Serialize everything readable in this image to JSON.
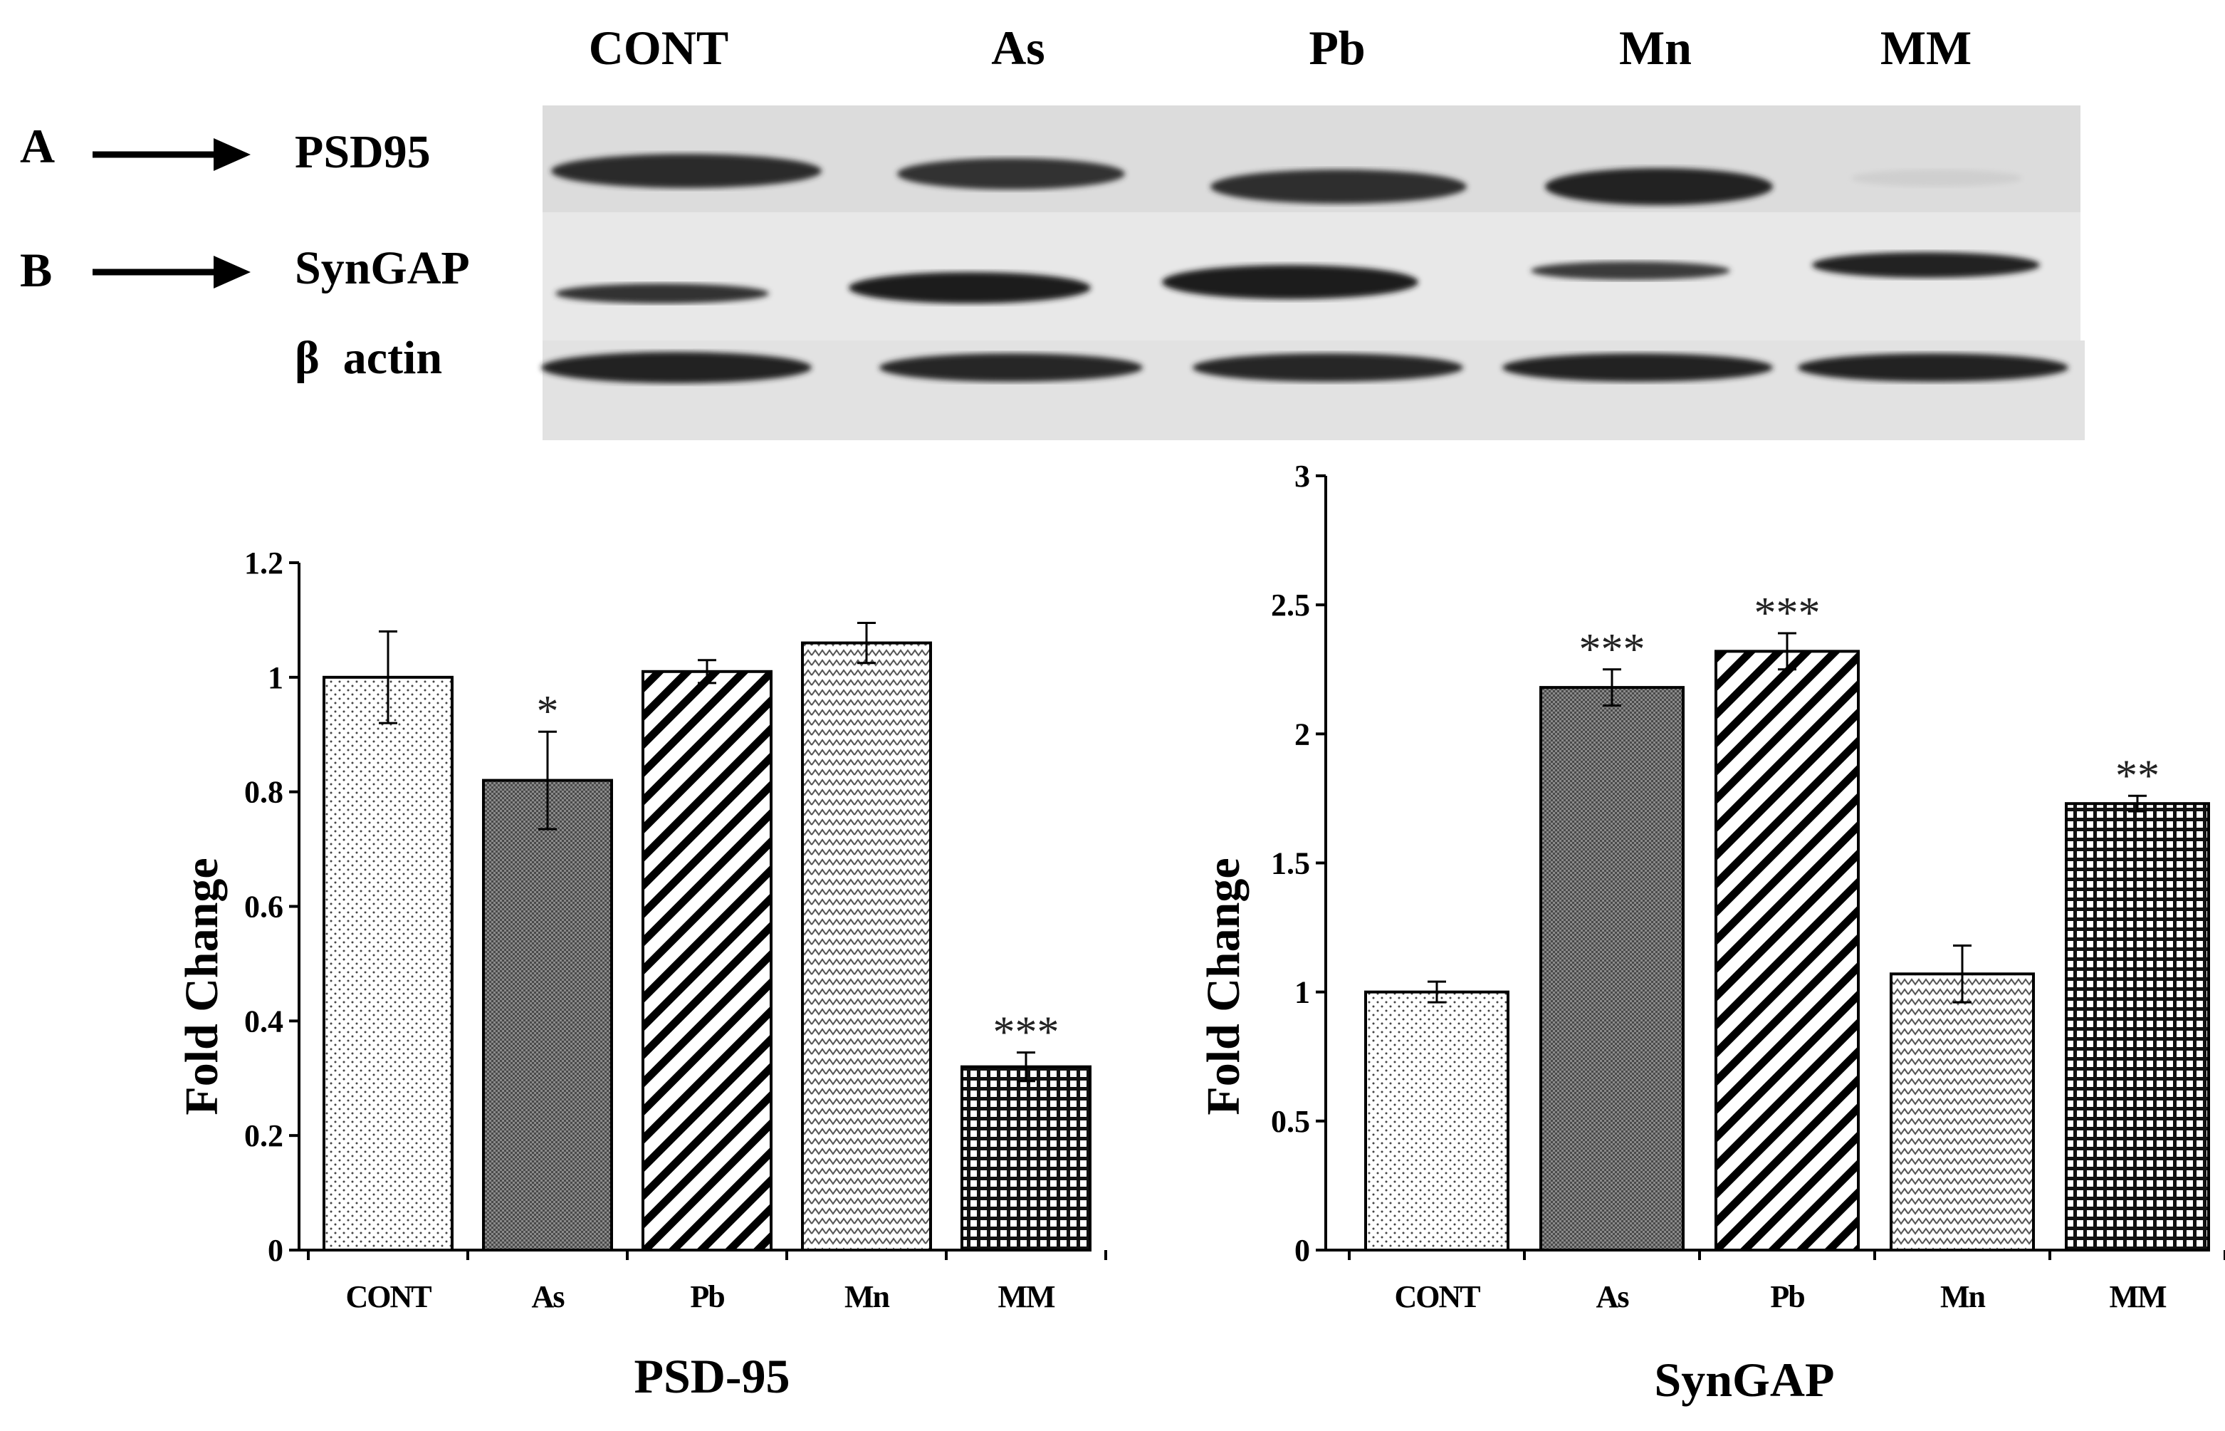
{
  "blot": {
    "lane_labels": [
      "CONT",
      "As",
      "Pb",
      "Mn",
      "MM"
    ],
    "panel_a": {
      "letter": "A",
      "label": "PSD95"
    },
    "panel_b": {
      "letter": "B",
      "label": "SynGAP"
    },
    "loading_control_label": "β  actin"
  },
  "chart_data": [
    {
      "type": "bar",
      "title": "PSD-95",
      "xlabel": "PSD-95",
      "ylabel": "Fold Change",
      "categories": [
        "CONT",
        "As",
        "Pb",
        "Mn",
        "MM"
      ],
      "values": [
        1.0,
        0.82,
        1.01,
        1.06,
        0.32
      ],
      "errors": [
        0.08,
        0.085,
        0.02,
        0.035,
        0.025
      ],
      "significance": [
        "",
        "*",
        "",
        "",
        "***"
      ],
      "patterns": [
        "dots",
        "dense",
        "diagonal",
        "zigzag",
        "grid"
      ],
      "ylim": [
        0,
        1.2
      ],
      "yticks": [
        0,
        0.2,
        0.4,
        0.6,
        0.8,
        1,
        1.2
      ],
      "ytick_labels": [
        "0",
        "0.2",
        "0.4",
        "0.6",
        "0.8",
        "1",
        "1.2"
      ],
      "grid": false
    },
    {
      "type": "bar",
      "title": "SynGAP",
      "xlabel": "SynGAP",
      "ylabel": "Fold Change",
      "categories": [
        "CONT",
        "As",
        "Pb",
        "Mn",
        "MM"
      ],
      "values": [
        1.0,
        2.18,
        2.32,
        1.07,
        1.73
      ],
      "errors": [
        0.04,
        0.07,
        0.07,
        0.11,
        0.03
      ],
      "significance": [
        "",
        "***",
        "***",
        "",
        "**"
      ],
      "patterns": [
        "dots",
        "dense",
        "diagonal",
        "zigzag",
        "grid"
      ],
      "ylim": [
        0,
        3
      ],
      "yticks": [
        0,
        0.5,
        1,
        1.5,
        2,
        2.5,
        3
      ],
      "ytick_labels": [
        "0",
        "0.5",
        "1",
        "1.5",
        "2",
        "2.5",
        "3"
      ],
      "grid": false
    }
  ]
}
